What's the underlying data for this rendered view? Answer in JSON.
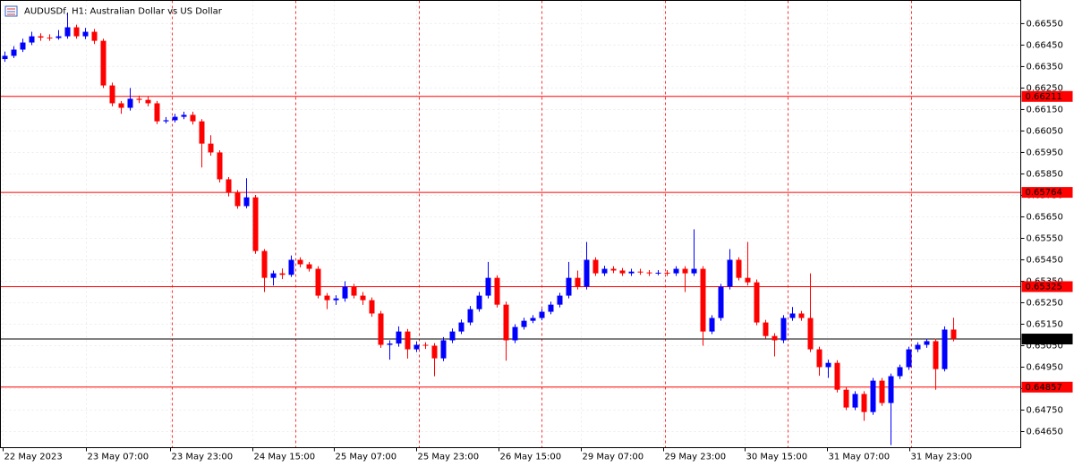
{
  "chart_data": {
    "type": "candlestick",
    "title": "AUDUSDf, H1:  Australian Dollar vs US Dollar",
    "up_color": "#0000ff",
    "down_color": "#ff0000",
    "grid": true,
    "xlim": [
      -0.5,
      113.5
    ],
    "ylim": [
      0.64575,
      0.66658
    ],
    "yticks": [
      {
        "value": 0.6655,
        "label": "0.66550"
      },
      {
        "value": 0.6645,
        "label": "0.66450"
      },
      {
        "value": 0.6635,
        "label": "0.66350"
      },
      {
        "value": 0.6625,
        "label": "0.66250"
      },
      {
        "value": 0.6615,
        "label": "0.66150"
      },
      {
        "value": 0.6605,
        "label": "0.66050"
      },
      {
        "value": 0.6595,
        "label": "0.65950"
      },
      {
        "value": 0.6585,
        "label": "0.65850"
      },
      {
        "value": 0.6575,
        "label": "0.65750"
      },
      {
        "value": 0.6565,
        "label": "0.65650"
      },
      {
        "value": 0.6555,
        "label": "0.65550"
      },
      {
        "value": 0.6545,
        "label": "0.65450"
      },
      {
        "value": 0.6535,
        "label": "0.65350"
      },
      {
        "value": 0.6525,
        "label": "0.65250"
      },
      {
        "value": 0.6515,
        "label": "0.65150"
      },
      {
        "value": 0.6505,
        "label": "0.65050"
      },
      {
        "value": 0.6495,
        "label": "0.64950"
      },
      {
        "value": 0.6485,
        "label": "0.64850"
      },
      {
        "value": 0.6475,
        "label": "0.64750"
      },
      {
        "value": 0.6465,
        "label": "0.64650"
      }
    ],
    "xticks": [
      {
        "value": -0.2,
        "label": "22 May 2023"
      },
      {
        "value": 9.1,
        "label": "23 May 07:00"
      },
      {
        "value": 18.5,
        "label": "23 May 23:00"
      },
      {
        "value": 27.7,
        "label": "24 May 15:00"
      },
      {
        "value": 36.8,
        "label": "25 May 07:00"
      },
      {
        "value": 46,
        "label": "25 May 23:00"
      },
      {
        "value": 55.2,
        "label": "26 May 15:00"
      },
      {
        "value": 64.4,
        "label": "29 May 07:00"
      },
      {
        "value": 73.6,
        "label": "29 May 23:00"
      },
      {
        "value": 82.7,
        "label": "30 May 15:00"
      },
      {
        "value": 91.9,
        "label": "31 May 07:00"
      },
      {
        "value": 101.1,
        "label": "31 May 23:00"
      }
    ],
    "separators": [
      18.7,
      32.5,
      46.3,
      60,
      73.8,
      87.5,
      101.3
    ],
    "separator_color": "#ff0000",
    "levels": [
      {
        "value": 0.66211,
        "color": "#ff0000"
      },
      {
        "value": 0.65764,
        "color": "#ff0000"
      },
      {
        "value": 0.65325,
        "color": "#ff0000"
      },
      {
        "value": 0.65081,
        "color": "#000000"
      },
      {
        "value": 0.64857,
        "color": "#ff0000"
      }
    ],
    "candles": [
      [
        0.66385,
        0.6642,
        0.66372,
        0.664
      ],
      [
        0.664,
        0.66445,
        0.6639,
        0.66429
      ],
      [
        0.66429,
        0.6648,
        0.66418,
        0.66462
      ],
      [
        0.66462,
        0.66512,
        0.6645,
        0.66491
      ],
      [
        0.66491,
        0.66505,
        0.6647,
        0.66485
      ],
      [
        0.66485,
        0.665,
        0.6647,
        0.66483
      ],
      [
        0.66483,
        0.6652,
        0.66475,
        0.66491
      ],
      [
        0.66491,
        0.66596,
        0.6648,
        0.66533
      ],
      [
        0.66533,
        0.66545,
        0.6648,
        0.66491
      ],
      [
        0.66491,
        0.6653,
        0.66478,
        0.66512
      ],
      [
        0.66512,
        0.66525,
        0.66455,
        0.6647
      ],
      [
        0.6647,
        0.6648,
        0.6625,
        0.66262
      ],
      [
        0.66262,
        0.66275,
        0.66165,
        0.66179
      ],
      [
        0.66179,
        0.6619,
        0.6613,
        0.66158
      ],
      [
        0.66158,
        0.6625,
        0.66145,
        0.662
      ],
      [
        0.662,
        0.66215,
        0.6618,
        0.66195
      ],
      [
        0.66195,
        0.6621,
        0.66165,
        0.66179
      ],
      [
        0.66179,
        0.6619,
        0.66082,
        0.66095
      ],
      [
        0.66095,
        0.66115,
        0.66085,
        0.661
      ],
      [
        0.661,
        0.6613,
        0.6609,
        0.66116
      ],
      [
        0.66116,
        0.6614,
        0.66105,
        0.66125
      ],
      [
        0.66125,
        0.6614,
        0.6608,
        0.66095
      ],
      [
        0.66095,
        0.66105,
        0.6588,
        0.65991
      ],
      [
        0.65991,
        0.6603,
        0.65935,
        0.6595
      ],
      [
        0.6595,
        0.6596,
        0.6581,
        0.65825
      ],
      [
        0.65825,
        0.65835,
        0.65745,
        0.65762
      ],
      [
        0.65762,
        0.65775,
        0.65688,
        0.657
      ],
      [
        0.657,
        0.6583,
        0.6569,
        0.65741
      ],
      [
        0.65741,
        0.65752,
        0.65478,
        0.65491
      ],
      [
        0.65491,
        0.655,
        0.653,
        0.65366
      ],
      [
        0.65366,
        0.654,
        0.6533,
        0.65387
      ],
      [
        0.65387,
        0.6541,
        0.6536,
        0.6538
      ],
      [
        0.6538,
        0.6547,
        0.6537,
        0.6545
      ],
      [
        0.6545,
        0.65462,
        0.65415,
        0.65429
      ],
      [
        0.65429,
        0.6544,
        0.65395,
        0.65408
      ],
      [
        0.65408,
        0.6542,
        0.6527,
        0.65283
      ],
      [
        0.65283,
        0.65295,
        0.6522,
        0.65262
      ],
      [
        0.65262,
        0.65285,
        0.6524,
        0.6527
      ],
      [
        0.6527,
        0.6535,
        0.65255,
        0.65325
      ],
      [
        0.65325,
        0.65338,
        0.6527,
        0.65283
      ],
      [
        0.65283,
        0.653,
        0.6524,
        0.65262
      ],
      [
        0.65262,
        0.65275,
        0.65185,
        0.652
      ],
      [
        0.652,
        0.65212,
        0.6504,
        0.65054
      ],
      [
        0.65054,
        0.65075,
        0.64985,
        0.6506
      ],
      [
        0.6506,
        0.6514,
        0.65045,
        0.65116
      ],
      [
        0.65116,
        0.65128,
        0.6499,
        0.65033
      ],
      [
        0.65033,
        0.6507,
        0.6502,
        0.65054
      ],
      [
        0.65054,
        0.65066,
        0.65035,
        0.6505
      ],
      [
        0.6505,
        0.65062,
        0.64908,
        0.64991
      ],
      [
        0.64991,
        0.6509,
        0.64978,
        0.65075
      ],
      [
        0.65075,
        0.6513,
        0.65062,
        0.65116
      ],
      [
        0.65116,
        0.65172,
        0.65104,
        0.65158
      ],
      [
        0.65158,
        0.65235,
        0.65145,
        0.6522
      ],
      [
        0.6522,
        0.653,
        0.65208,
        0.65283
      ],
      [
        0.65283,
        0.6544,
        0.6527,
        0.65366
      ],
      [
        0.65366,
        0.65378,
        0.65228,
        0.65241
      ],
      [
        0.65241,
        0.65255,
        0.6498,
        0.65075
      ],
      [
        0.65075,
        0.6515,
        0.65062,
        0.65137
      ],
      [
        0.65137,
        0.6518,
        0.65125,
        0.65166
      ],
      [
        0.65166,
        0.65192,
        0.65155,
        0.65179
      ],
      [
        0.65179,
        0.6522,
        0.65168,
        0.65208
      ],
      [
        0.65208,
        0.65255,
        0.65196,
        0.65241
      ],
      [
        0.65241,
        0.65296,
        0.65228,
        0.65283
      ],
      [
        0.65283,
        0.6544,
        0.6527,
        0.65366
      ],
      [
        0.65366,
        0.654,
        0.65312,
        0.65325
      ],
      [
        0.65325,
        0.65533,
        0.65312,
        0.6545
      ],
      [
        0.6545,
        0.65462,
        0.65375,
        0.65387
      ],
      [
        0.65387,
        0.65422,
        0.65375,
        0.65408
      ],
      [
        0.65408,
        0.6542,
        0.65388,
        0.654
      ],
      [
        0.654,
        0.65412,
        0.65375,
        0.65387
      ],
      [
        0.65387,
        0.65408,
        0.65375,
        0.65395
      ],
      [
        0.65395,
        0.65408,
        0.6538,
        0.65391
      ],
      [
        0.65391,
        0.65402,
        0.65375,
        0.65387
      ],
      [
        0.65387,
        0.65402,
        0.65378,
        0.6539
      ],
      [
        0.6539,
        0.65402,
        0.65375,
        0.65387
      ],
      [
        0.65387,
        0.6542,
        0.65375,
        0.65408
      ],
      [
        0.65408,
        0.6542,
        0.653,
        0.65387
      ],
      [
        0.65387,
        0.65592,
        0.65375,
        0.65408
      ],
      [
        0.65408,
        0.6542,
        0.6505,
        0.65116
      ],
      [
        0.65116,
        0.65192,
        0.65104,
        0.65179
      ],
      [
        0.65179,
        0.65338,
        0.65166,
        0.65325
      ],
      [
        0.65325,
        0.655,
        0.65312,
        0.6545
      ],
      [
        0.6545,
        0.65462,
        0.65354,
        0.65366
      ],
      [
        0.65366,
        0.65533,
        0.6533,
        0.65345
      ],
      [
        0.65345,
        0.65358,
        0.65145,
        0.65158
      ],
      [
        0.65158,
        0.6517,
        0.65082,
        0.65095
      ],
      [
        0.65095,
        0.65108,
        0.65,
        0.65075
      ],
      [
        0.65075,
        0.65192,
        0.65062,
        0.65179
      ],
      [
        0.65179,
        0.6523,
        0.65166,
        0.652
      ],
      [
        0.652,
        0.65212,
        0.65166,
        0.65179
      ],
      [
        0.65179,
        0.65387,
        0.6502,
        0.65033
      ],
      [
        0.65033,
        0.65045,
        0.6491,
        0.6495
      ],
      [
        0.6495,
        0.64985,
        0.649,
        0.6497
      ],
      [
        0.6497,
        0.64982,
        0.64832,
        0.64845
      ],
      [
        0.64845,
        0.64858,
        0.6475,
        0.64762
      ],
      [
        0.64762,
        0.64838,
        0.6475,
        0.64825
      ],
      [
        0.64825,
        0.64838,
        0.647,
        0.64741
      ],
      [
        0.64741,
        0.649,
        0.64728,
        0.64887
      ],
      [
        0.64887,
        0.649,
        0.6477,
        0.64783
      ],
      [
        0.64783,
        0.6492,
        0.64587,
        0.64908
      ],
      [
        0.64908,
        0.64962,
        0.64895,
        0.6495
      ],
      [
        0.6495,
        0.65045,
        0.64937,
        0.65033
      ],
      [
        0.65033,
        0.65066,
        0.6502,
        0.65054
      ],
      [
        0.65054,
        0.65083,
        0.6504,
        0.65071
      ],
      [
        0.65071,
        0.65083,
        0.64845,
        0.64941
      ],
      [
        0.64941,
        0.6514,
        0.6493,
        0.65125
      ],
      [
        0.65125,
        0.6518,
        0.6507,
        0.65081
      ]
    ]
  }
}
